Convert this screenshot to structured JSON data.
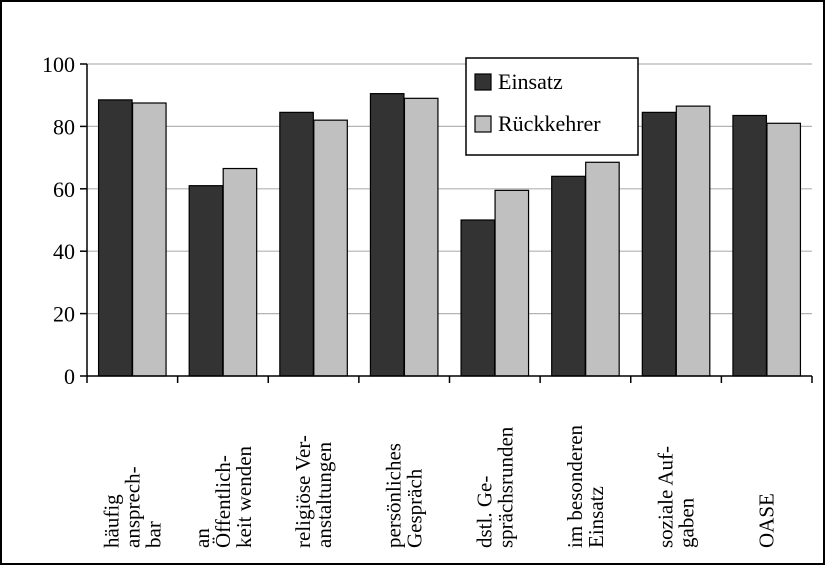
{
  "chart_data": {
    "type": "bar",
    "categories": [
      [
        "häufig",
        "ansprech-",
        "bar"
      ],
      [
        "an",
        "Öffentlich-",
        "keit wenden"
      ],
      [
        "religiöse Ver-",
        "anstaltungen"
      ],
      [
        "persönliches",
        "Gespräch"
      ],
      [
        "dstl. Ge-",
        "sprächsrunden"
      ],
      [
        "im besonderen",
        "Einsatz"
      ],
      [
        "soziale Auf-",
        "gaben"
      ],
      [
        "OASE"
      ]
    ],
    "series": [
      {
        "name": "Einsatz",
        "color": "#333333",
        "values": [
          88.5,
          61,
          84.5,
          90.5,
          50,
          64,
          84.5,
          83.5
        ]
      },
      {
        "name": "Rückkehrer",
        "color": "#c0c0c0",
        "values": [
          87.5,
          66.5,
          82,
          89,
          59.5,
          68.5,
          86.5,
          81
        ]
      }
    ],
    "ylim": [
      0,
      100
    ],
    "yticks": [
      0,
      20,
      40,
      60,
      80,
      100
    ],
    "grid": true,
    "legend": "top-right",
    "title": "",
    "xlabel": "",
    "ylabel": ""
  }
}
